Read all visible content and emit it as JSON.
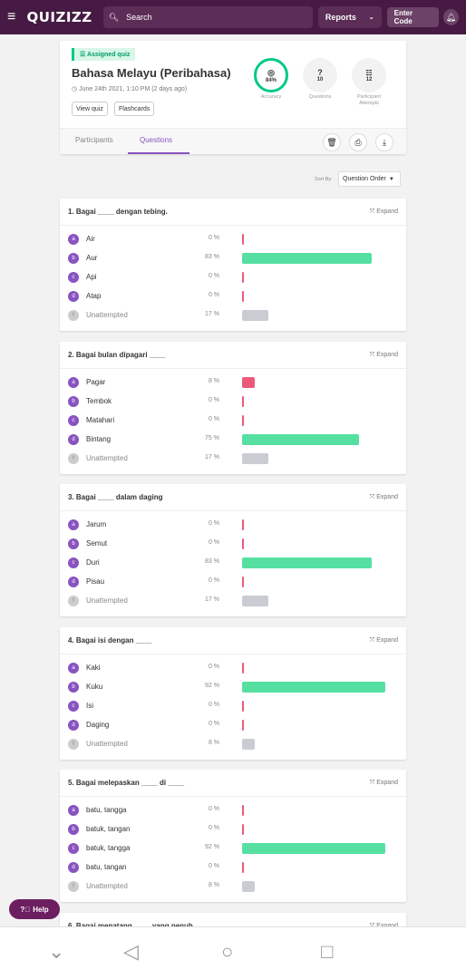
{
  "topbar": {
    "logo": "QUIZIZZ",
    "search_placeholder": "Search",
    "reports_label": "Reports",
    "enter_code_label": "Enter Code"
  },
  "header": {
    "badge": "Assigned quiz",
    "title": "Bahasa Melayu (Peribahasa)",
    "date": "June 24th 2021, 1:10 PM (2 days ago)",
    "view_quiz": "View quiz",
    "flashcards": "Flashcards",
    "stats": {
      "accuracy_value": "84%",
      "accuracy_label": "Accuracy",
      "questions_value": "10",
      "questions_label": "Questions",
      "attempts_value": "12",
      "attempts_label": "Participant Attempts"
    },
    "tabs": [
      "Participants",
      "Questions"
    ]
  },
  "sort": {
    "label": "Sort By:",
    "value": "Question Order"
  },
  "expand_label": "Expand",
  "questions": [
    {
      "title": "1. Bagai ____ dengan tebing.",
      "options": [
        {
          "letter": "a",
          "text": "Air",
          "pct": "0 %",
          "value": 0,
          "correct": false
        },
        {
          "letter": "b",
          "text": "Aur",
          "pct": "83 %",
          "value": 83,
          "correct": true
        },
        {
          "letter": "c",
          "text": "Api",
          "pct": "0 %",
          "value": 0,
          "correct": false
        },
        {
          "letter": "d",
          "text": "Atap",
          "pct": "0 %",
          "value": 0,
          "correct": false
        },
        {
          "letter": "!",
          "text": "Unattempted",
          "pct": "17 %",
          "value": 17,
          "unattempted": true
        }
      ]
    },
    {
      "title": "2. Bagai bulan dipagari ____",
      "options": [
        {
          "letter": "a",
          "text": "Pagar",
          "pct": "8 %",
          "value": 8,
          "correct": false
        },
        {
          "letter": "b",
          "text": "Tembok",
          "pct": "0 %",
          "value": 0,
          "correct": false
        },
        {
          "letter": "c",
          "text": "Matahari",
          "pct": "0 %",
          "value": 0,
          "correct": false
        },
        {
          "letter": "d",
          "text": "Bintang",
          "pct": "75 %",
          "value": 75,
          "correct": true
        },
        {
          "letter": "!",
          "text": "Unattempted",
          "pct": "17 %",
          "value": 17,
          "unattempted": true
        }
      ]
    },
    {
      "title": "3. Bagai ____ dalam daging",
      "options": [
        {
          "letter": "a",
          "text": "Jarum",
          "pct": "0 %",
          "value": 0,
          "correct": false
        },
        {
          "letter": "b",
          "text": "Semut",
          "pct": "0 %",
          "value": 0,
          "correct": false
        },
        {
          "letter": "c",
          "text": "Duri",
          "pct": "83 %",
          "value": 83,
          "correct": true
        },
        {
          "letter": "d",
          "text": "Pisau",
          "pct": "0 %",
          "value": 0,
          "correct": false
        },
        {
          "letter": "!",
          "text": "Unattempted",
          "pct": "17 %",
          "value": 17,
          "unattempted": true
        }
      ]
    },
    {
      "title": "4. Bagai isi dengan ____",
      "options": [
        {
          "letter": "a",
          "text": "Kaki",
          "pct": "0 %",
          "value": 0,
          "correct": false
        },
        {
          "letter": "b",
          "text": "Kuku",
          "pct": "92 %",
          "value": 92,
          "correct": true
        },
        {
          "letter": "c",
          "text": "Isi",
          "pct": "0 %",
          "value": 0,
          "correct": false
        },
        {
          "letter": "d",
          "text": "Daging",
          "pct": "0 %",
          "value": 0,
          "correct": false
        },
        {
          "letter": "!",
          "text": "Unattempted",
          "pct": "8 %",
          "value": 8,
          "unattempted": true
        }
      ]
    },
    {
      "title": "5. Bagai melepaskan ____ di ____",
      "options": [
        {
          "letter": "a",
          "text": "batu, tangga",
          "pct": "0 %",
          "value": 0,
          "correct": false
        },
        {
          "letter": "b",
          "text": "batuk, tangan",
          "pct": "0 %",
          "value": 0,
          "correct": false
        },
        {
          "letter": "c",
          "text": "batuk, tangga",
          "pct": "92 %",
          "value": 92,
          "correct": true
        },
        {
          "letter": "d",
          "text": "batu, tangan",
          "pct": "0 %",
          "value": 0,
          "correct": false
        },
        {
          "letter": "!",
          "text": "Unattempted",
          "pct": "8 %",
          "value": 8,
          "unattempted": true
        }
      ]
    },
    {
      "title": "6. Bagai menatang ____ yang penuh",
      "options": []
    }
  ],
  "help_label": "Help",
  "colors": {
    "brand": "#461a42",
    "correct": "#55e0a2",
    "incorrect": "#ec5a7a",
    "unattempted": "#c9ccd3",
    "accent": "#8854c0"
  }
}
